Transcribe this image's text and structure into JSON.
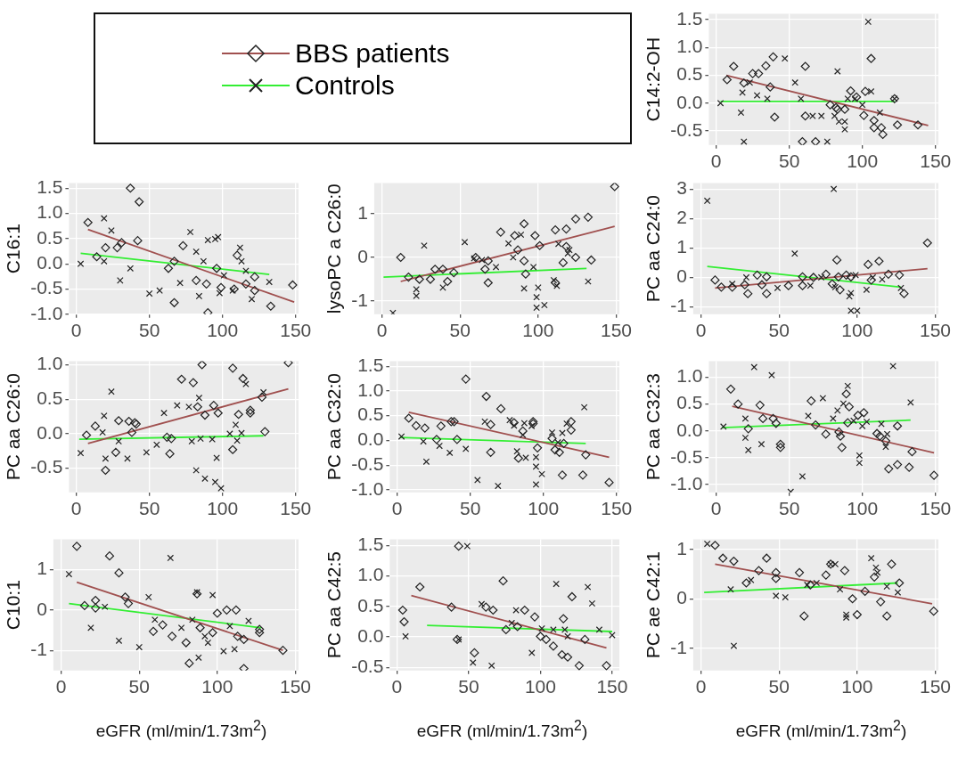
{
  "chart_data": [
    {
      "type": "scatter",
      "ylabel": "C14:2-OH",
      "legend": "left",
      "grid": true,
      "xlim": [
        -5,
        152
      ],
      "xticks": [
        0,
        50,
        100,
        150
      ],
      "ylim": [
        -0.75,
        1.6
      ],
      "yticks": [
        -0.5,
        {
          "value": 0,
          "label": "0.0"
        },
        0.5,
        {
          "value": 1,
          "label": "1.0"
        },
        1.5
      ],
      "series": [
        {
          "name": "BBS patients",
          "type": "scatter",
          "marker": "diamond",
          "color": "#222222",
          "x": [
            7.5,
            12,
            19,
            25,
            29,
            34,
            37,
            39,
            40,
            61,
            61,
            59,
            68,
            78,
            82,
            83,
            88,
            92,
            96,
            101,
            106,
            102,
            108,
            108,
            113,
            114,
            124,
            138,
            122
          ],
          "values": [
            0.42,
            0.66,
            0.36,
            0.53,
            0.53,
            0.67,
            0.29,
            0.83,
            -0.25,
            0.66,
            -0.23,
            -0.69,
            -0.69,
            -0.03,
            -0.08,
            -0.11,
            -0.11,
            0.22,
            0.11,
            -0.22,
            0.8,
            0.21,
            -0.31,
            -0.44,
            -0.44,
            -0.56,
            -0.39,
            -0.39,
            0.08
          ]
        },
        {
          "name": "Controls",
          "type": "scatter",
          "marker": "cross",
          "color": "#222222",
          "x": [
            3,
            17,
            18,
            23,
            28,
            35,
            47,
            54,
            58,
            19,
            66,
            72,
            76,
            81,
            83,
            84,
            88,
            88,
            90,
            95,
            100,
            104,
            106,
            112,
            122
          ],
          "values": [
            0,
            -0.17,
            0.19,
            0.37,
            0.14,
            0.08,
            0.8,
            0.37,
            0.08,
            -0.69,
            -0.23,
            -0.23,
            -0.69,
            -0.23,
            0.57,
            -0.33,
            -0.33,
            -0.47,
            0.08,
            0.08,
            -0.03,
            1.46,
            0.21,
            -0.17,
            0.08
          ]
        },
        {
          "type": "line",
          "color": "#a0504f",
          "x": [
            7,
            145
          ],
          "values": [
            0.5,
            -0.4
          ]
        },
        {
          "type": "line",
          "color": "#33ee33",
          "x": [
            3,
            122
          ],
          "values": [
            0.03,
            0.03
          ]
        }
      ]
    },
    {
      "type": "scatter",
      "ylabel": "C16:1",
      "grid": true,
      "xlim": [
        -5,
        152
      ],
      "xticks": [
        0,
        50,
        100,
        150
      ],
      "ylim": [
        -1,
        1.6
      ],
      "yticks": [
        {
          "value": -1,
          "label": "-1.0"
        },
        -0.5,
        {
          "value": 0,
          "label": "0.0"
        },
        0.5,
        {
          "value": 1,
          "label": "1.0"
        },
        1.5
      ],
      "series": [
        {
          "type": "scatter",
          "marker": "diamond",
          "color": "#222222",
          "x": [
            8,
            14,
            20,
            28,
            31,
            37,
            42,
            43,
            63,
            67,
            67,
            73,
            82,
            90,
            89,
            99,
            108,
            110,
            116,
            122,
            122,
            133,
            148,
            96
          ],
          "values": [
            0.82,
            0.14,
            0.32,
            0.32,
            0.42,
            1.5,
            0.46,
            1.23,
            -0.09,
            -0.77,
            0.05,
            0.36,
            -0.33,
            -0.97,
            -0.4,
            -0.47,
            -0.5,
            0.17,
            -0.4,
            -0.26,
            -0.53,
            -0.84,
            -0.42,
            -0.09
          ]
        },
        {
          "type": "scatter",
          "marker": "cross",
          "color": "#222222",
          "x": [
            3,
            19,
            19,
            24,
            30,
            37,
            50,
            57,
            71,
            78,
            82,
            84,
            87,
            90,
            95,
            97,
            98,
            101,
            112,
            113,
            116,
            120,
            132,
            107
          ],
          "values": [
            0,
            0.9,
            0.05,
            0.66,
            -0.33,
            -0.09,
            -0.59,
            -0.53,
            -0.38,
            0.63,
            0.24,
            -0.64,
            0.05,
            0.47,
            0.49,
            0.53,
            -0.58,
            -0.23,
            0.32,
            0.05,
            -0.14,
            -0.7,
            -0.36,
            -0.53
          ]
        },
        {
          "type": "line",
          "color": "#a0504f",
          "x": [
            8,
            149
          ],
          "values": [
            0.68,
            -0.76
          ]
        },
        {
          "type": "line",
          "color": "#33ee33",
          "x": [
            3,
            132
          ],
          "values": [
            0.21,
            -0.21
          ]
        }
      ]
    },
    {
      "type": "scatter",
      "ylabel": "lysoPC a C26:0",
      "grid": true,
      "xlim": [
        -5,
        152
      ],
      "xticks": [
        0,
        50,
        100,
        150
      ],
      "ylim": [
        -1.3,
        1.7
      ],
      "yticks": [
        -1,
        0,
        1
      ],
      "series": [
        {
          "type": "scatter",
          "marker": "diamond",
          "color": "#222222",
          "x": [
            12,
            17,
            24,
            31,
            34,
            39,
            42,
            46,
            60,
            66,
            68,
            68,
            76,
            85,
            87,
            91,
            91,
            92,
            98,
            101,
            111,
            116,
            118,
            118,
            124,
            124,
            132,
            134,
            149,
            111
          ],
          "values": [
            0,
            -0.45,
            -0.5,
            -0.5,
            -0.27,
            -0.27,
            -0.55,
            -0.35,
            0,
            -0.27,
            -0.08,
            -0.58,
            0.58,
            0.5,
            0.17,
            0.77,
            -0.08,
            -0.38,
            0.5,
            0.27,
            0.63,
            -0.12,
            0.65,
            0.25,
            0,
            0.88,
            0.92,
            -0.06,
            1.62,
            -0.58
          ]
        },
        {
          "type": "scatter",
          "marker": "cross",
          "color": "#222222",
          "x": [
            7,
            22,
            22,
            27,
            39,
            53,
            59,
            64,
            73,
            81,
            84,
            89,
            91,
            97,
            99,
            100,
            99,
            104,
            110,
            112,
            113,
            120,
            119,
            132
          ],
          "values": [
            -1.27,
            -0.73,
            -0.88,
            0.27,
            -0.69,
            0.35,
            -0.02,
            -0.06,
            -0.22,
            0.32,
            0,
            0.52,
            -0.71,
            -0.22,
            -0.91,
            -0.69,
            -1.15,
            -1.09,
            -0.52,
            -0.65,
            0.31,
            0.17,
            0.09,
            -0.55
          ]
        },
        {
          "type": "line",
          "color": "#a0504f",
          "x": [
            12,
            149
          ],
          "values": [
            -0.55,
            0.71
          ]
        },
        {
          "type": "line",
          "color": "#33ee33",
          "x": [
            1,
            131
          ],
          "values": [
            -0.45,
            -0.25
          ]
        }
      ]
    },
    {
      "type": "scatter",
      "ylabel": "PC aa C24:0",
      "grid": true,
      "xlim": [
        -5,
        152
      ],
      "xticks": [
        0,
        50,
        100,
        150
      ],
      "ylim": [
        -1.25,
        3.2
      ],
      "yticks": [
        -1,
        0,
        1,
        2,
        3
      ],
      "series": [
        {
          "type": "scatter",
          "marker": "diamond",
          "color": "#222222",
          "x": [
            9,
            13,
            20,
            28,
            30,
            36,
            39,
            42,
            42,
            56,
            65,
            65,
            72,
            80,
            84,
            87,
            88,
            93,
            96,
            107,
            109,
            114,
            120,
            127,
            130,
            145,
            89
          ],
          "values": [
            -0.09,
            -0.33,
            -0.33,
            -0.25,
            -0.55,
            0.08,
            -0.25,
            -0.55,
            0.02,
            -0.28,
            0.02,
            -0.28,
            0,
            0.11,
            -0.22,
            0.59,
            0.02,
            0.08,
            0.02,
            0.44,
            -0.09,
            0.55,
            0.11,
            0.08,
            -0.55,
            1.17,
            -0.42
          ]
        },
        {
          "type": "scatter",
          "marker": "cross",
          "color": "#222222",
          "x": [
            4,
            20,
            29,
            49,
            60,
            70,
            77,
            85,
            86,
            95,
            96,
            100,
            96,
            106,
            110,
            116,
            128,
            99
          ],
          "values": [
            2.6,
            -0.22,
            0,
            -0.36,
            0.81,
            -0.28,
            0,
            3.0,
            -0.33,
            -0.64,
            -1.13,
            -1.13,
            -0.53,
            -0.42,
            0,
            -0.07,
            -0.36,
            0.08
          ]
        },
        {
          "type": "line",
          "color": "#a0504f",
          "x": [
            9,
            145
          ],
          "values": [
            -0.36,
            0.3
          ]
        },
        {
          "type": "line",
          "color": "#33ee33",
          "x": [
            4,
            128
          ],
          "values": [
            0.37,
            -0.33
          ]
        }
      ]
    },
    {
      "type": "scatter",
      "ylabel": "PC aa C26:0",
      "grid": true,
      "xlim": [
        -5,
        152
      ],
      "xticks": [
        0,
        50,
        100,
        150
      ],
      "ylim": [
        -0.85,
        1.05
      ],
      "yticks": [
        -0.5,
        {
          "value": 0,
          "label": "0.0"
        },
        0.5,
        {
          "value": 1,
          "label": "1.0"
        }
      ],
      "series": [
        {
          "type": "scatter",
          "marker": "diamond",
          "color": "#222222",
          "x": [
            7,
            13,
            20,
            27,
            29,
            36,
            38,
            40,
            41,
            62,
            64,
            65,
            72,
            80,
            83,
            86,
            88,
            94,
            97,
            107,
            107,
            111,
            114,
            119,
            119,
            127,
            129,
            145
          ],
          "values": [
            -0.02,
            0.11,
            -0.53,
            -0.27,
            0.19,
            0.18,
            0.02,
            0.16,
            0.14,
            -0.05,
            -0.29,
            -0.07,
            0.79,
            0.74,
            0.39,
            1.0,
            0.27,
            0.41,
            0.3,
            0.95,
            -0.23,
            0.28,
            0.8,
            0.34,
            0.3,
            0.53,
            0.03,
            1.03
          ]
        },
        {
          "type": "scatter",
          "marker": "cross",
          "color": "#222222",
          "x": [
            3,
            18,
            19,
            20,
            24,
            29,
            35,
            48,
            55,
            60,
            69,
            77,
            79,
            82,
            84,
            85,
            88,
            93,
            95,
            96,
            99,
            105,
            109,
            110,
            113,
            116,
            128
          ],
          "values": [
            -0.28,
            0.02,
            0.26,
            -0.36,
            0.61,
            -0.11,
            -0.36,
            -0.27,
            -0.16,
            0.3,
            0.41,
            0.39,
            -0.11,
            -0.53,
            0.52,
            -0.07,
            -0.65,
            -0.08,
            -0.7,
            -0.35,
            -0.79,
            0,
            0.13,
            -0.1,
            0.01,
            0.72,
            0.6
          ]
        },
        {
          "type": "line",
          "color": "#a0504f",
          "x": [
            8,
            145
          ],
          "values": [
            -0.14,
            0.65
          ]
        },
        {
          "type": "line",
          "color": "#33ee33",
          "x": [
            2,
            128
          ],
          "values": [
            -0.08,
            -0.03
          ]
        }
      ]
    },
    {
      "type": "scatter",
      "ylabel": "PC aa C32:0",
      "grid": true,
      "xlim": [
        -5,
        152
      ],
      "xticks": [
        0,
        50,
        100,
        150
      ],
      "ylim": [
        -1.05,
        1.6
      ],
      "yticks": [
        {
          "value": -1,
          "label": "-1.0"
        },
        -0.5,
        {
          "value": 0,
          "label": "0.0"
        },
        0.5,
        {
          "value": 1,
          "label": "1.0"
        },
        1.5
      ],
      "series": [
        {
          "type": "scatter",
          "marker": "diamond",
          "color": "#222222",
          "x": [
            8,
            13,
            19,
            27,
            30,
            37,
            39,
            41,
            47,
            61,
            64,
            64,
            71,
            80,
            83,
            86,
            93,
            93,
            96,
            106,
            108,
            111,
            114,
            113,
            119,
            119,
            127,
            129,
            145
          ],
          "values": [
            0.45,
            0.3,
            0.25,
            0.02,
            0.29,
            0.38,
            0.38,
            0.02,
            1.24,
            0.89,
            0.32,
            -0.24,
            0.64,
            0.36,
            -0.36,
            0.19,
            0.34,
            0.38,
            -0.15,
            0.04,
            -0.19,
            -0.24,
            -0.06,
            -0.7,
            0.21,
            0.38,
            -0.7,
            -0.29,
            -0.85
          ]
        },
        {
          "type": "scatter",
          "marker": "cross",
          "color": "#222222",
          "x": [
            3,
            18,
            20,
            29,
            36,
            47,
            55,
            60,
            69,
            77,
            80,
            82,
            86,
            87,
            88,
            92,
            95,
            95,
            99,
            95,
            106,
            110,
            113,
            116,
            128
          ],
          "values": [
            0.08,
            -0.02,
            -0.43,
            -0.11,
            -0.25,
            -0.17,
            -0.8,
            0.38,
            -0.92,
            0.41,
            0.3,
            -0.22,
            0.11,
            0.35,
            -0.35,
            0.29,
            -0.34,
            -0.53,
            -0.68,
            -0.89,
            0.16,
            -0.04,
            0.15,
            0.34,
            0.67
          ]
        },
        {
          "type": "line",
          "color": "#a0504f",
          "x": [
            8,
            145
          ],
          "values": [
            0.57,
            -0.34
          ]
        },
        {
          "type": "line",
          "color": "#33ee33",
          "x": [
            2,
            129
          ],
          "values": [
            0.06,
            -0.06
          ]
        }
      ]
    },
    {
      "type": "scatter",
      "ylabel": "PC aa C32:3",
      "grid": true,
      "xlim": [
        -5,
        152
      ],
      "xticks": [
        0,
        50,
        100,
        150
      ],
      "ylim": [
        -1.15,
        1.3
      ],
      "yticks": [
        {
          "value": -1,
          "label": "-1.0"
        },
        -0.5,
        {
          "value": 0,
          "label": "0.0"
        },
        0.5,
        {
          "value": 1,
          "label": "1.0"
        }
      ],
      "series": [
        {
          "type": "scatter",
          "marker": "diamond",
          "color": "#222222",
          "x": [
            10,
            15,
            22,
            30,
            32,
            39,
            41,
            44,
            44,
            65,
            68,
            75,
            84,
            85,
            86,
            89,
            91,
            90,
            97,
            101,
            110,
            112,
            116,
            118,
            124,
            124,
            132,
            134,
            149
          ],
          "values": [
            0.78,
            0.5,
            0.04,
            0.48,
            0.23,
            0.23,
            0.14,
            -0.25,
            -0.31,
            0.56,
            0.11,
            -0.06,
            -0.02,
            -0.1,
            -0.31,
            0.69,
            0.45,
            0.15,
            0.29,
            0.34,
            -0.05,
            -0.1,
            -0.19,
            -0.71,
            0.09,
            -0.63,
            -0.68,
            -0.39,
            -0.83
          ]
        },
        {
          "type": "scatter",
          "marker": "cross",
          "color": "#222222",
          "x": [
            5,
            20,
            20,
            22,
            26,
            31,
            38,
            51,
            59,
            63,
            73,
            80,
            83,
            87,
            90,
            94,
            98,
            98,
            100,
            103,
            113,
            117,
            121,
            116,
            133
          ],
          "values": [
            0.08,
            0.23,
            -0.13,
            -0.36,
            1.19,
            -0.25,
            1.04,
            -1.14,
            -0.85,
            0.28,
            0.61,
            0.23,
            0.38,
            0.51,
            0.84,
            0.19,
            -0.46,
            -0.6,
            0.09,
            0.17,
            0.13,
            -0.06,
            1.21,
            -0.3,
            0.53
          ]
        },
        {
          "type": "line",
          "color": "#a0504f",
          "x": [
            11,
            149
          ],
          "values": [
            0.46,
            -0.41
          ]
        },
        {
          "type": "line",
          "color": "#33ee33",
          "x": [
            4,
            133
          ],
          "values": [
            0.06,
            0.2
          ]
        }
      ]
    },
    {
      "type": "scatter",
      "ylabel": "C10:1",
      "xlabel": "eGFR (ml/min/1.73m$^{2}$)",
      "grid": true,
      "xlim": [
        -5,
        152
      ],
      "xticks": [
        0,
        50,
        100,
        150
      ],
      "ylim": [
        -1.5,
        1.75
      ],
      "yticks": [
        -1,
        0,
        1
      ],
      "series": [
        {
          "type": "scatter",
          "marker": "diamond",
          "color": "#222222",
          "x": [
            10,
            15,
            22,
            31,
            37,
            41,
            43,
            22,
            59,
            65,
            71,
            80,
            82,
            87,
            89,
            97,
            106,
            112,
            113,
            117,
            117,
            127,
            127,
            142,
            100
          ],
          "values": [
            1.58,
            0.11,
            0.24,
            1.34,
            0.92,
            0.32,
            0.16,
            0.05,
            -0.53,
            -0.37,
            -0.65,
            -0.81,
            -1.32,
            0.4,
            -0.44,
            -0.56,
            0,
            0,
            -0.65,
            -0.73,
            -1.45,
            -0.56,
            -0.48,
            -1.0,
            -0.08
          ]
        },
        {
          "type": "scatter",
          "marker": "cross",
          "color": "#222222",
          "x": [
            5,
            19,
            28,
            37,
            50,
            56,
            60,
            70,
            77,
            84,
            87,
            88,
            92,
            94,
            97,
            104,
            111,
            108,
            120
          ],
          "values": [
            0.89,
            -0.44,
            0.08,
            -0.76,
            -0.92,
            0.32,
            -0.24,
            1.29,
            -0.44,
            -0.24,
            0.44,
            -1.18,
            -0.65,
            -0.81,
            0.37,
            -1.02,
            -0.97,
            -0.4,
            -0.27
          ]
        },
        {
          "type": "line",
          "color": "#a0504f",
          "x": [
            10,
            142
          ],
          "values": [
            0.69,
            -1.0
          ]
        },
        {
          "type": "line",
          "color": "#33ee33",
          "x": [
            5,
            128
          ],
          "values": [
            0.16,
            -0.44
          ]
        }
      ]
    },
    {
      "type": "scatter",
      "ylabel": "PC aa C42:5",
      "xlabel": "eGFR (ml/min/1.73m$^{2}$)",
      "grid": true,
      "xlim": [
        -5,
        155
      ],
      "xticks": [
        0,
        50,
        100,
        150
      ],
      "ylim": [
        -0.55,
        1.6
      ],
      "yticks": [
        -0.5,
        {
          "value": 0,
          "label": "0.0"
        },
        0.5,
        {
          "value": 1,
          "label": "1.0"
        },
        1.5
      ],
      "series": [
        {
          "type": "scatter",
          "marker": "diamond",
          "color": "#222222",
          "x": [
            4,
            5,
            16,
            38,
            43,
            42,
            54,
            62,
            67,
            74,
            76,
            84,
            89,
            96,
            100,
            104,
            109,
            115,
            119,
            116,
            127,
            131,
            146,
            122
          ],
          "values": [
            0.44,
            0.25,
            0.82,
            0.49,
            1.49,
            -0.04,
            -0.26,
            0.49,
            0.44,
            0.92,
            0.12,
            0.17,
            0.44,
            0.33,
            0.01,
            -0.04,
            -0.15,
            -0.29,
            -0.33,
            0.3,
            -0.47,
            -0.04,
            -0.47,
            0.66
          ]
        },
        {
          "type": "scatter",
          "marker": "cross",
          "color": "#222222",
          "x": [
            6,
            43,
            49,
            53,
            59,
            66,
            80,
            83,
            94,
            101,
            109,
            111,
            117,
            119,
            133,
            136,
            141,
            150
          ],
          "values": [
            0.01,
            -0.04,
            1.49,
            -0.42,
            0.54,
            -0.47,
            0.23,
            0.44,
            -0.26,
            0.14,
            0.12,
            0.87,
            0.12,
            0.01,
            0.82,
            0.55,
            0.12,
            0.03
          ]
        },
        {
          "type": "line",
          "color": "#a0504f",
          "x": [
            10,
            146
          ],
          "values": [
            0.68,
            -0.18
          ]
        },
        {
          "type": "line",
          "color": "#33ee33",
          "x": [
            21,
            150
          ],
          "values": [
            0.19,
            0.09
          ]
        }
      ]
    },
    {
      "type": "scatter",
      "ylabel": "PC ae C42:1",
      "xlabel": "eGFR (ml/min/1.73m$^{2}$)",
      "grid": true,
      "xlim": [
        -5,
        152
      ],
      "xticks": [
        0,
        50,
        100,
        150
      ],
      "ylim": [
        -1.45,
        1.2
      ],
      "yticks": [
        -1,
        0,
        1
      ],
      "series": [
        {
          "type": "scatter",
          "marker": "diamond",
          "color": "#222222",
          "x": [
            9,
            14,
            21,
            29,
            37,
            42,
            48,
            63,
            66,
            70,
            80,
            83,
            92,
            97,
            100,
            105,
            111,
            115,
            119,
            122,
            127,
            149,
            48
          ],
          "values": [
            1.08,
            0.82,
            0.76,
            0.32,
            0.57,
            0.82,
            0.41,
            0.53,
            -0.35,
            0.28,
            0.48,
            0.7,
            0.57,
            0,
            -0.32,
            0.15,
            0.44,
            -0.06,
            -0.35,
            0.7,
            0.32,
            -0.25,
            0.53
          ]
        },
        {
          "type": "scatter",
          "marker": "cross",
          "color": "#222222",
          "x": [
            4,
            19,
            21,
            32,
            48,
            54,
            68,
            74,
            83,
            86,
            89,
            93,
            93,
            109,
            112,
            113,
            119,
            126
          ],
          "values": [
            1.11,
            0.19,
            -0.95,
            0.38,
            0.06,
            0.03,
            0.28,
            0.32,
            0.7,
            0.7,
            0.19,
            -0.32,
            -0.38,
            0.82,
            0.63,
            0.53,
            0.25,
            0.13
          ]
        },
        {
          "type": "line",
          "color": "#a0504f",
          "x": [
            9,
            148
          ],
          "values": [
            0.7,
            -0.1
          ]
        },
        {
          "type": "line",
          "color": "#33ee33",
          "x": [
            2,
            126
          ],
          "values": [
            0.13,
            0.32
          ]
        }
      ]
    }
  ]
}
